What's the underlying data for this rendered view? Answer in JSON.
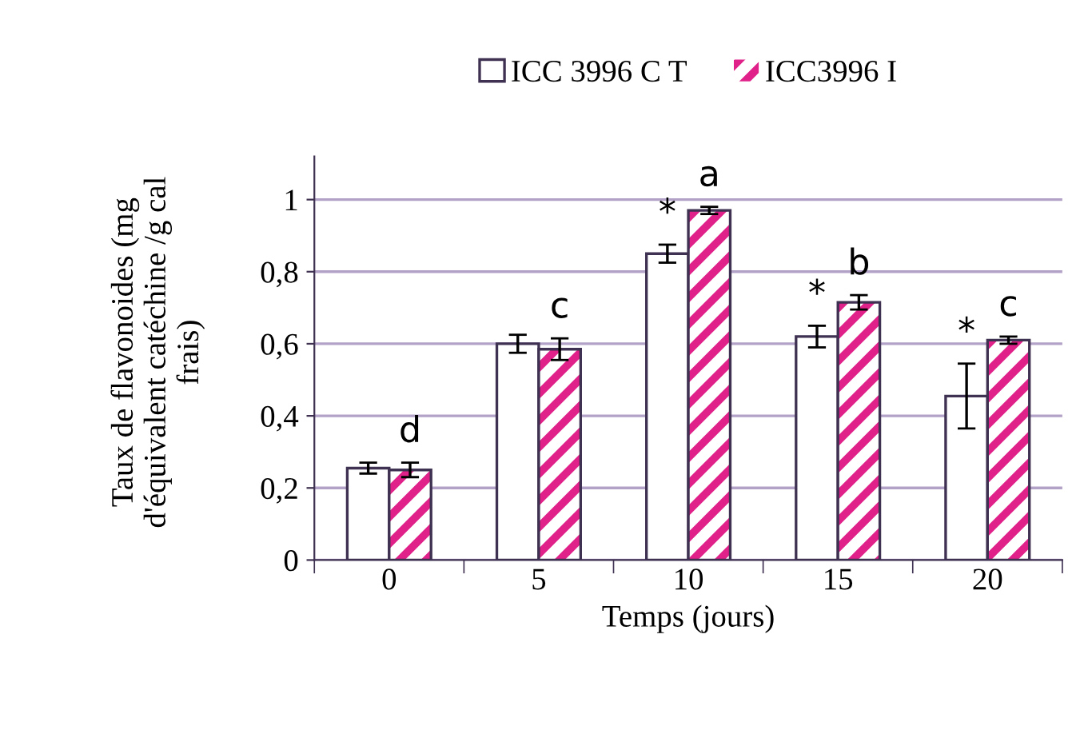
{
  "chart_data": {
    "type": "bar",
    "xlabel": "Temps (jours)",
    "ylabel": "Taux de flavonoides (mg d'équivalent catéchine /g cal frais)",
    "categories": [
      "0",
      "5",
      "10",
      "15",
      "20"
    ],
    "series": [
      {
        "name": "ICC 3996 C T",
        "color": "#ffffff",
        "values": [
          0.255,
          0.6,
          0.85,
          0.62,
          0.455
        ],
        "errors": [
          0.015,
          0.025,
          0.025,
          0.03,
          0.09
        ]
      },
      {
        "name": "ICC3996 I",
        "color": "#e0218a",
        "values": [
          0.25,
          0.585,
          0.97,
          0.715,
          0.61
        ],
        "errors": [
          0.02,
          0.03,
          0.01,
          0.02,
          0.01
        ]
      }
    ],
    "ylim": [
      0,
      1.12
    ],
    "yticks": [
      0,
      {
        "value": 0.2,
        "label": "0,2"
      },
      {
        "value": 0.4,
        "label": "0,4"
      },
      {
        "value": 0.6,
        "label": "0,6"
      },
      {
        "value": 0.8,
        "label": "0,8"
      },
      1
    ],
    "grid": "y",
    "legend": "top",
    "annotations": [
      {
        "text": "d",
        "x": "0",
        "y": 0.25
      },
      {
        "text": "c",
        "x": "5",
        "y": 0.585
      },
      {
        "text": "a",
        "x": "10",
        "y": 0.97
      },
      {
        "text": "*",
        "x": "10",
        "y": 0.85
      },
      {
        "text": "b",
        "x": "15",
        "y": 0.715
      },
      {
        "text": "*",
        "x": "15",
        "y": 0.62
      },
      {
        "text": "c",
        "x": "20",
        "y": 0.61
      },
      {
        "text": "*",
        "x": "20",
        "y": 0.455
      }
    ]
  }
}
